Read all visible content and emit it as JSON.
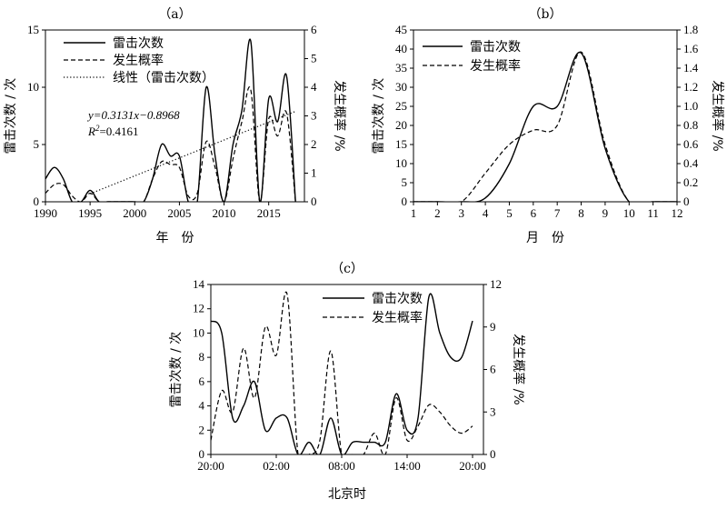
{
  "chart_data": [
    {
      "type": "line",
      "title": "（a）",
      "xlabel": "年　份",
      "ylabel": "雷击次数 / 次",
      "y2label": "发生概率 /%",
      "xlim": [
        1990,
        2019
      ],
      "ylim": [
        0,
        15
      ],
      "y2lim": [
        0,
        6
      ],
      "xticks": [
        "1990",
        "1995",
        "2000",
        "2005",
        "2010",
        "2015"
      ],
      "xtick_values": [
        1990,
        1995,
        2000,
        2005,
        2010,
        2015
      ],
      "yticks": [
        "0",
        "5",
        "10",
        "15"
      ],
      "y2ticks": [
        "0",
        "1",
        "2",
        "3",
        "4",
        "5",
        "6"
      ],
      "legend_position": "top-left",
      "series": [
        {
          "name": "雷击次数",
          "axis": "left",
          "style": "solid",
          "x": [
            1990,
            1991,
            1992,
            1993,
            1994,
            1995,
            1996,
            1997,
            1998,
            1999,
            2000,
            2001,
            2002,
            2003,
            2004,
            2005,
            2006,
            2007,
            2008,
            2009,
            2010,
            2011,
            2012,
            2013,
            2014,
            2015,
            2016,
            2017,
            2018
          ],
          "values": [
            2,
            3,
            2,
            0,
            0,
            1,
            0,
            0,
            0,
            0,
            0,
            0,
            2,
            5,
            4,
            4,
            0,
            0,
            10,
            4,
            0,
            5,
            8,
            14,
            0,
            9,
            7,
            11,
            0
          ]
        },
        {
          "name": "发生概率",
          "axis": "right",
          "style": "dashed",
          "x": [
            1990,
            1991,
            1992,
            1993,
            1994,
            1995,
            1996,
            1997,
            1998,
            1999,
            2000,
            2001,
            2002,
            2003,
            2004,
            2005,
            2006,
            2007,
            2008,
            2009,
            2010,
            2011,
            2012,
            2013,
            2014,
            2015,
            2016,
            2017,
            2018
          ],
          "values": [
            0.3,
            0.6,
            0.6,
            0.2,
            0,
            0.3,
            0,
            0,
            0,
            0,
            0,
            0,
            0.8,
            1.4,
            1.3,
            1.2,
            0.2,
            0.3,
            2.1,
            1.2,
            0,
            1.5,
            2.8,
            3.9,
            0,
            2.9,
            2.3,
            3.1,
            0
          ]
        },
        {
          "name": "线性（雷击次数）",
          "axis": "left",
          "style": "dotted",
          "x": [
            1995,
            2018
          ],
          "values": [
            0.7,
            7.9
          ]
        }
      ],
      "annotation": {
        "equation": "y=0.3131x−0.8968",
        "r2_label": "R",
        "r2_sup": "2",
        "r2_value": "=0.4161"
      }
    },
    {
      "type": "line",
      "title": "（b）",
      "xlabel": "月　份",
      "ylabel": "雷击次数 / 次",
      "y2label": "发生概率 /%",
      "xlim": [
        1,
        12
      ],
      "ylim": [
        0,
        45
      ],
      "y2lim": [
        0,
        1.8
      ],
      "xticks": [
        "1",
        "2",
        "3",
        "4",
        "5",
        "6",
        "7",
        "8",
        "9",
        "10",
        "11",
        "12"
      ],
      "xtick_values": [
        1,
        2,
        3,
        4,
        5,
        6,
        7,
        8,
        9,
        10,
        11,
        12
      ],
      "yticks": [
        "0",
        "5",
        "10",
        "15",
        "20",
        "25",
        "30",
        "35",
        "40",
        "45"
      ],
      "y2ticks": [
        "0",
        "0.2",
        "0.4",
        "0.6",
        "0.8",
        "1.0",
        "1.2",
        "1.4",
        "1.6",
        "1.8"
      ],
      "legend_position": "top-center",
      "series": [
        {
          "name": "雷击次数",
          "axis": "left",
          "style": "solid",
          "x": [
            1,
            2,
            3,
            4,
            5,
            6,
            7,
            8,
            9,
            10,
            11,
            12
          ],
          "values": [
            0,
            0,
            0,
            1,
            10,
            25,
            25,
            39,
            14,
            0,
            0,
            0
          ]
        },
        {
          "name": "发生概率",
          "axis": "right",
          "style": "dashed",
          "x": [
            1,
            2,
            3,
            4,
            5,
            6,
            7,
            8,
            9,
            10,
            11,
            12
          ],
          "values": [
            0,
            0,
            0,
            0.3,
            0.6,
            0.75,
            0.8,
            1.57,
            0.6,
            0,
            0,
            0
          ]
        }
      ]
    },
    {
      "type": "line",
      "title": "（c）",
      "xlabel": "北京时",
      "ylabel": "雷击次数 / 次",
      "y2label": "发生概率 /%",
      "xlim": [
        20,
        45
      ],
      "ylim": [
        0,
        14
      ],
      "y2lim": [
        0,
        12
      ],
      "xticks": [
        "20:00",
        "02:00",
        "08:00",
        "14:00",
        "20:00"
      ],
      "xtick_values": [
        20,
        26,
        32,
        38,
        44
      ],
      "yticks": [
        "0",
        "2",
        "4",
        "6",
        "8",
        "10",
        "12",
        "14"
      ],
      "y2ticks": [
        "0",
        "3",
        "6",
        "9",
        "12"
      ],
      "legend_position": "top-right",
      "series": [
        {
          "name": "雷击次数",
          "axis": "left",
          "style": "solid",
          "x": [
            20,
            21,
            22,
            23,
            24,
            25,
            26,
            27,
            28,
            29,
            30,
            31,
            32,
            33,
            34,
            35,
            36,
            37,
            38,
            39,
            40,
            41,
            42,
            43,
            44
          ],
          "values": [
            11,
            10,
            3,
            4,
            6,
            2,
            3,
            3,
            0,
            1,
            0,
            3,
            0,
            1,
            1,
            1,
            1,
            5,
            2,
            3,
            13,
            10,
            8,
            8,
            11
          ]
        },
        {
          "name": "发生概率",
          "axis": "right",
          "style": "dashed",
          "x": [
            20,
            21,
            22,
            23,
            24,
            25,
            26,
            27,
            28,
            29,
            30,
            31,
            32,
            33,
            34,
            35,
            36,
            37,
            38,
            39,
            40,
            41,
            42,
            43,
            44
          ],
          "values": [
            1,
            4.5,
            3,
            7.5,
            4,
            9,
            7,
            11.3,
            0,
            0,
            1,
            7.3,
            0,
            0,
            0,
            1.5,
            0,
            4,
            1,
            2,
            3.5,
            3,
            2,
            1.5,
            2
          ]
        }
      ]
    }
  ]
}
